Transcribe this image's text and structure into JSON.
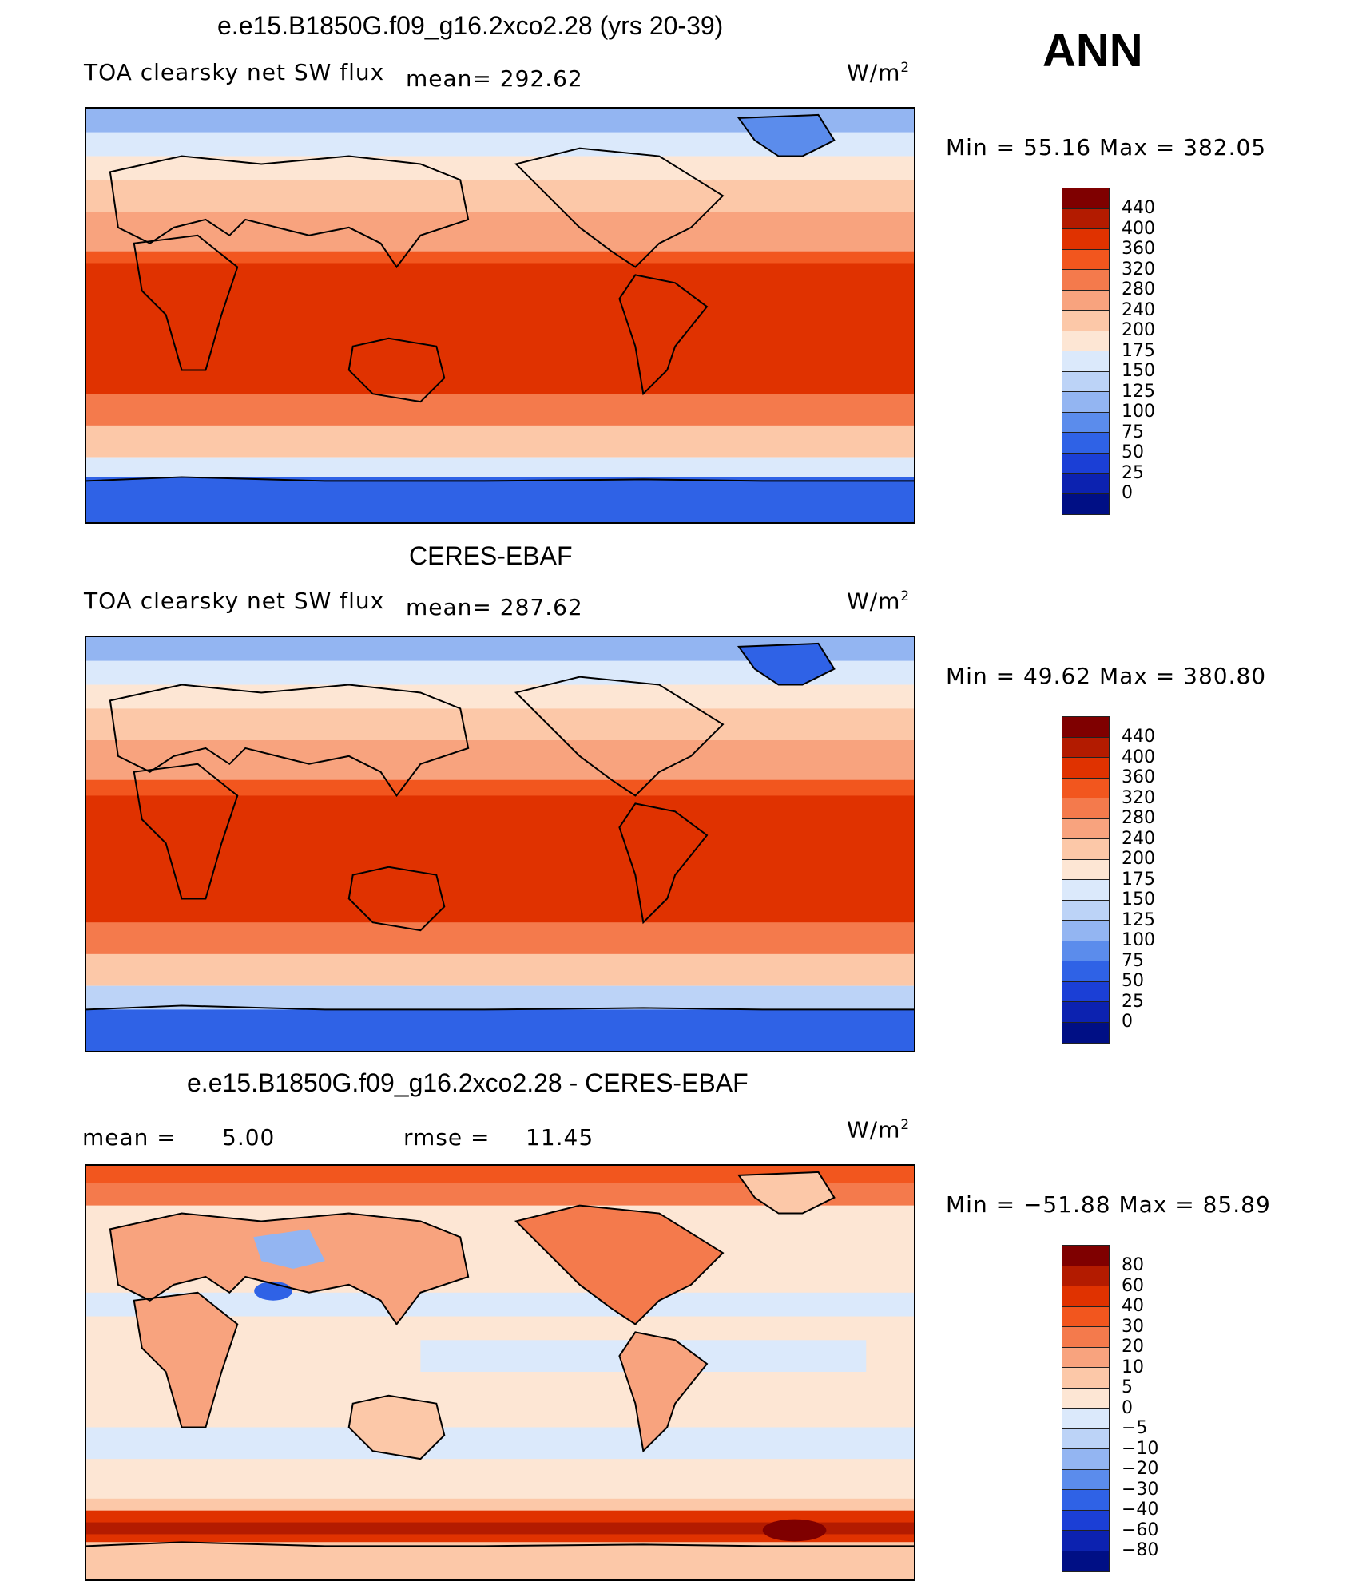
{
  "season": "ANN",
  "units": "W/m",
  "units_sup": "2",
  "panels": [
    {
      "title": "e.e15.B1850G.f09_g16.2xco2.28 (yrs 20-39)",
      "subtitle": "TOA clearsky net SW flux",
      "stat": "mean=  292.62",
      "minmax": "Min =   55.16 Max =  382.05",
      "colorbar_ticks": [
        "440",
        "400",
        "360",
        "320",
        "280",
        "240",
        "200",
        "175",
        "150",
        "125",
        "100",
        "75",
        "50",
        "25",
        "0"
      ]
    },
    {
      "title": "CERES-EBAF",
      "subtitle": "TOA clearsky net SW flux",
      "stat": "mean=  287.62",
      "minmax": "Min =   49.62 Max =  380.80",
      "colorbar_ticks": [
        "440",
        "400",
        "360",
        "320",
        "280",
        "240",
        "200",
        "175",
        "150",
        "125",
        "100",
        "75",
        "50",
        "25",
        "0"
      ]
    },
    {
      "title": "e.e15.B1850G.f09_g16.2xco2.28 - CERES-EBAF",
      "stat_mean_label": "mean =",
      "stat_mean_value": "5.00",
      "stat_rmse_label": "rmse =",
      "stat_rmse_value": "11.45",
      "minmax": "Min = −51.88 Max =   85.89",
      "colorbar_ticks": [
        "80",
        "60",
        "40",
        "30",
        "20",
        "10",
        "5",
        "0",
        "−5",
        "−10",
        "−20",
        "−30",
        "−40",
        "−60",
        "−80"
      ]
    }
  ],
  "colors": {
    "abs_scale": [
      "#7f0000",
      "#b31b00",
      "#e03200",
      "#f2561e",
      "#f47a4c",
      "#f8a37e",
      "#fcc8a8",
      "#fde6d4",
      "#dbe9fb",
      "#bcd3f7",
      "#93b5f2",
      "#5b8cec",
      "#2f62e6",
      "#1b3fd6",
      "#0c22b0",
      "#000f85"
    ],
    "diff_scale": [
      "#7f0000",
      "#b31b00",
      "#e03200",
      "#f2561e",
      "#f47a4c",
      "#f8a37e",
      "#fcc8a8",
      "#fde6d4",
      "#dbe9fb",
      "#bcd3f7",
      "#93b5f2",
      "#5b8cec",
      "#2f62e6",
      "#1b3fd6",
      "#0c22b0",
      "#000f85"
    ]
  }
}
